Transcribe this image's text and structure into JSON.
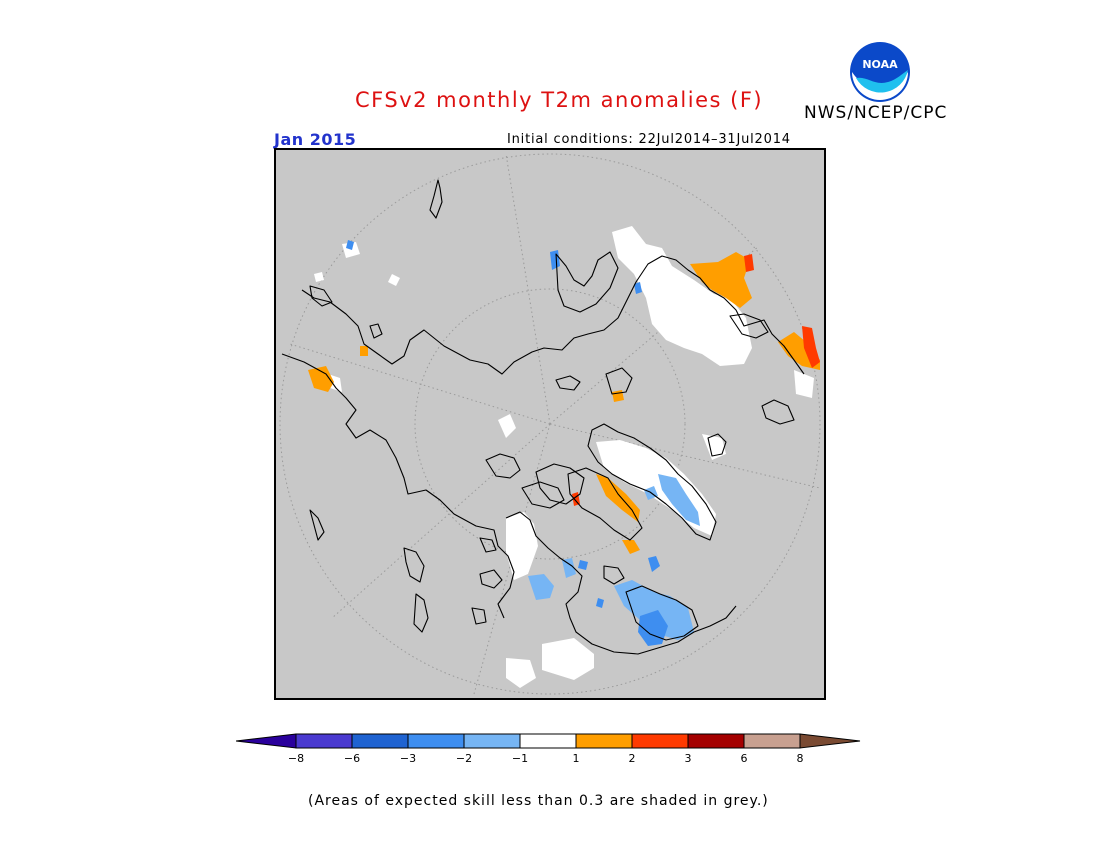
{
  "title": "CFSv2 monthly T2m anomalies (F)",
  "agency": "NWS/NCEP/CPC",
  "logo": {
    "icon": "noaa-logo-icon",
    "text": "NOAA"
  },
  "valid_month": "Jan 2015",
  "initial_conditions": {
    "label": "Initial conditions:",
    "range": "22Jul2014–31Jul2014"
  },
  "map": {
    "projection": "north-polar-stereographic",
    "background_color": "#c8c8c8"
  },
  "colorbar": {
    "ticks": [
      "−8",
      "−6",
      "−3",
      "−2",
      "−1",
      "1",
      "2",
      "3",
      "6",
      "8"
    ],
    "colors": [
      "#2a009c",
      "#4a3ad0",
      "#1f63d1",
      "#3e8ef0",
      "#76b5f4",
      "#ffffff",
      "#ff9e00",
      "#ff3a00",
      "#a40000",
      "#c8a090",
      "#7a4a32"
    ]
  },
  "note": "(Areas of expected skill less than 0.3 are shaded in grey.)"
}
